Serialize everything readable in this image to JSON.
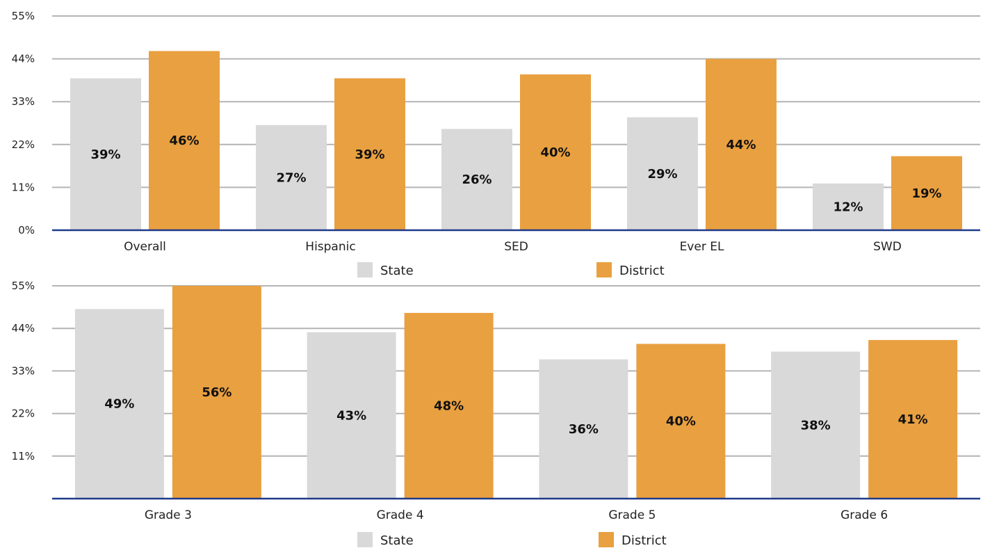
{
  "colors": {
    "state": "#d9d9d9",
    "district": "#e9a040",
    "grid": "#b4b4b4",
    "axis": "#1f3a8a"
  },
  "chart_data": [
    {
      "type": "bar",
      "title": "",
      "xlabel": "",
      "ylabel": "",
      "ylim": [
        0,
        55
      ],
      "yticks": [
        "0%",
        "11%",
        "22%",
        "33%",
        "44%",
        "55%"
      ],
      "grid": true,
      "legend_position": "bottom",
      "categories": [
        "Overall",
        "Hispanic",
        "SED",
        "Ever EL",
        "SWD"
      ],
      "series": [
        {
          "name": "State",
          "values": [
            39,
            27,
            26,
            29,
            12
          ],
          "labels": [
            "39%",
            "27%",
            "26%",
            "29%",
            "12%"
          ]
        },
        {
          "name": "District",
          "values": [
            46,
            39,
            40,
            44,
            19
          ],
          "labels": [
            "46%",
            "39%",
            "40%",
            "44%",
            "19%"
          ]
        }
      ]
    },
    {
      "type": "bar",
      "title": "",
      "xlabel": "",
      "ylabel": "",
      "ylim": [
        0,
        55
      ],
      "yticks": [
        "",
        "11%",
        "22%",
        "33%",
        "44%",
        "55%"
      ],
      "grid": true,
      "legend_position": "bottom",
      "categories": [
        "Grade 3",
        "Grade 4",
        "Grade 5",
        "Grade 6"
      ],
      "series": [
        {
          "name": "State",
          "values": [
            49,
            43,
            36,
            38
          ],
          "labels": [
            "49%",
            "43%",
            "36%",
            "38%"
          ]
        },
        {
          "name": "District",
          "values": [
            56,
            48,
            40,
            41
          ],
          "labels": [
            "56%",
            "48%",
            "40%",
            "41%"
          ]
        }
      ]
    }
  ]
}
